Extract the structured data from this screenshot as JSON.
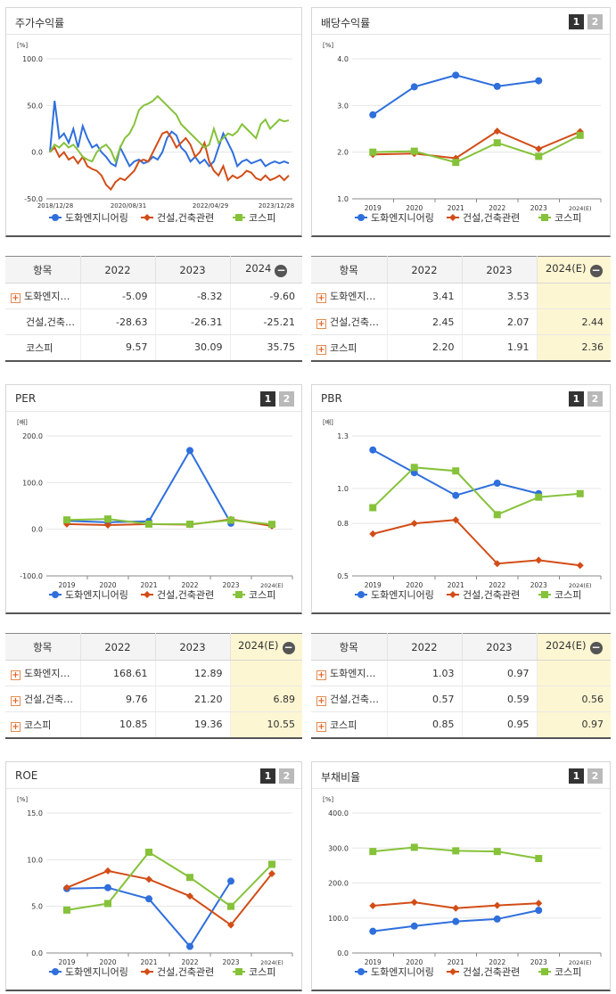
{
  "legend": {
    "s1": "도화엔지니어링",
    "s2": "건설,건축관련",
    "s3": "코스피"
  },
  "colors": {
    "s1": "#2f6fdc",
    "s2": "#d24d17",
    "s3": "#86c23a"
  },
  "pager": {
    "p1": "1",
    "p2": "2"
  },
  "panels": {
    "stock": {
      "title": "주가수익률"
    },
    "div": {
      "title": "배당수익률"
    },
    "per": {
      "title": "PER"
    },
    "pbr": {
      "title": "PBR"
    },
    "roe": {
      "title": "ROE"
    },
    "debt": {
      "title": "부채비율"
    }
  },
  "tables": {
    "stock": {
      "headers": [
        "항목",
        "2022",
        "2023",
        "2024"
      ],
      "rows": [
        {
          "name": "도화엔지…",
          "expand": true,
          "v": [
            "-5.09",
            "-8.32",
            "-9.60"
          ]
        },
        {
          "name": "건설,건축…",
          "expand": false,
          "v": [
            "-28.63",
            "-26.31",
            "-25.21"
          ]
        },
        {
          "name": "코스피",
          "expand": false,
          "v": [
            "9.57",
            "30.09",
            "35.75"
          ]
        }
      ]
    },
    "div": {
      "headers": [
        "항목",
        "2022",
        "2023",
        "2024(E)"
      ],
      "rows": [
        {
          "name": "도화엔지…",
          "expand": true,
          "v": [
            "3.41",
            "3.53",
            ""
          ]
        },
        {
          "name": "건설,건축…",
          "expand": true,
          "v": [
            "2.45",
            "2.07",
            "2.44"
          ]
        },
        {
          "name": "코스피",
          "expand": true,
          "v": [
            "2.20",
            "1.91",
            "2.36"
          ]
        }
      ]
    },
    "per": {
      "headers": [
        "항목",
        "2022",
        "2023",
        "2024(E)"
      ],
      "rows": [
        {
          "name": "도화엔지…",
          "expand": true,
          "v": [
            "168.61",
            "12.89",
            ""
          ]
        },
        {
          "name": "건설,건축…",
          "expand": true,
          "v": [
            "9.76",
            "21.20",
            "6.89"
          ]
        },
        {
          "name": "코스피",
          "expand": true,
          "v": [
            "10.85",
            "19.36",
            "10.55"
          ]
        }
      ]
    },
    "pbr": {
      "headers": [
        "항목",
        "2022",
        "2023",
        "2024(E)"
      ],
      "rows": [
        {
          "name": "도화엔지…",
          "expand": true,
          "v": [
            "1.03",
            "0.97",
            ""
          ]
        },
        {
          "name": "건설,건축…",
          "expand": true,
          "v": [
            "0.57",
            "0.59",
            "0.56"
          ]
        },
        {
          "name": "코스피",
          "expand": true,
          "v": [
            "0.85",
            "0.95",
            "0.97"
          ]
        }
      ]
    }
  },
  "chart_data": [
    {
      "id": "stock",
      "type": "line",
      "title": "주가수익률",
      "ylabel": "[%]",
      "ylim": [
        -50,
        100
      ],
      "yticks": [
        "100.0",
        "50.0",
        "0.0",
        "-50.0"
      ],
      "ytick_values": [
        100,
        50,
        0,
        -50
      ],
      "xticks": [
        "2018/12/28",
        "2020/08/31",
        "2022/04/29",
        "2023/12/28"
      ],
      "series": [
        {
          "name": "도화엔지니어링",
          "values": [
            0,
            55,
            15,
            20,
            10,
            25,
            5,
            28,
            15,
            5,
            8,
            0,
            -5,
            -12,
            -15,
            5,
            -5,
            -15,
            -10,
            -8,
            -12,
            -10,
            -5,
            -8,
            0,
            15,
            22,
            18,
            5,
            0,
            -10,
            -5,
            -12,
            -8,
            -15,
            -10,
            5,
            20,
            10,
            0,
            -15,
            -10,
            -8,
            -12,
            -10,
            -8,
            -15,
            -12,
            -10,
            -12,
            -10,
            -12
          ]
        },
        {
          "name": "건설,건축관련",
          "values": [
            0,
            5,
            -5,
            0,
            -8,
            -5,
            -12,
            -5,
            -15,
            -18,
            -20,
            -25,
            -35,
            -40,
            -32,
            -28,
            -30,
            -25,
            -20,
            -10,
            -8,
            -10,
            0,
            10,
            20,
            22,
            15,
            5,
            10,
            15,
            8,
            -5,
            0,
            10,
            -10,
            -20,
            -25,
            -15,
            -30,
            -25,
            -28,
            -25,
            -20,
            -22,
            -28,
            -30,
            -25,
            -30,
            -28,
            -25,
            -30,
            -25
          ]
        },
        {
          "name": "코스피",
          "values": [
            0,
            8,
            5,
            10,
            5,
            8,
            2,
            -5,
            -8,
            -10,
            0,
            5,
            8,
            2,
            -10,
            5,
            15,
            20,
            30,
            45,
            50,
            52,
            55,
            60,
            55,
            50,
            45,
            40,
            30,
            25,
            20,
            15,
            10,
            5,
            8,
            25,
            10,
            15,
            20,
            18,
            22,
            30,
            25,
            20,
            15,
            30,
            35,
            25,
            30,
            35,
            33,
            34
          ]
        }
      ]
    },
    {
      "id": "div",
      "type": "line",
      "title": "배당수익률",
      "ylabel": "[%]",
      "ylim": [
        1,
        4
      ],
      "yticks": [
        "4.0",
        "3.0",
        "2.0",
        "1.0"
      ],
      "ytick_values": [
        4,
        3,
        2,
        1
      ],
      "categories": [
        "2019",
        "2020",
        "2021",
        "2022",
        "2023",
        "2024(E)"
      ],
      "series": [
        {
          "name": "도화엔지니어링",
          "values": [
            2.8,
            3.4,
            3.65,
            3.41,
            3.53,
            null
          ]
        },
        {
          "name": "건설,건축관련",
          "values": [
            1.95,
            1.97,
            1.87,
            2.45,
            2.07,
            2.44
          ]
        },
        {
          "name": "코스피",
          "values": [
            2.0,
            2.02,
            1.78,
            2.2,
            1.91,
            2.36
          ]
        }
      ]
    },
    {
      "id": "per",
      "type": "line",
      "title": "PER",
      "ylabel": "[배]",
      "ylim": [
        -100,
        200
      ],
      "yticks": [
        "200.0",
        "100.0",
        "0.0",
        "-100.0"
      ],
      "ytick_values": [
        200,
        100,
        0,
        -100
      ],
      "categories": [
        "2019",
        "2020",
        "2021",
        "2022",
        "2023",
        "2024(E)"
      ],
      "series": [
        {
          "name": "도화엔지니어링",
          "values": [
            18,
            15,
            17,
            168.61,
            12.89,
            null
          ]
        },
        {
          "name": "건설,건축관련",
          "values": [
            11,
            9,
            11,
            9.76,
            21.2,
            6.89
          ]
        },
        {
          "name": "코스피",
          "values": [
            20,
            22,
            11,
            10.85,
            19.36,
            10.55
          ]
        }
      ]
    },
    {
      "id": "pbr",
      "type": "line",
      "title": "PBR",
      "ylabel": "[배]",
      "ylim": [
        0.5,
        1.3
      ],
      "yticks": [
        "1.3",
        "1.0",
        "0.8",
        "0.5"
      ],
      "ytick_values": [
        1.3,
        1.0,
        0.8,
        0.5
      ],
      "categories": [
        "2019",
        "2020",
        "2021",
        "2022",
        "2023",
        "2024(E)"
      ],
      "series": [
        {
          "name": "도화엔지니어링",
          "values": [
            1.22,
            1.09,
            0.96,
            1.03,
            0.97,
            null
          ]
        },
        {
          "name": "건설,건축관련",
          "values": [
            0.74,
            0.8,
            0.82,
            0.57,
            0.59,
            0.56
          ]
        },
        {
          "name": "코스피",
          "values": [
            0.89,
            1.12,
            1.1,
            0.85,
            0.95,
            0.97
          ]
        }
      ]
    },
    {
      "id": "roe",
      "type": "line",
      "title": "ROE",
      "ylabel": "[%]",
      "ylim": [
        0,
        15
      ],
      "yticks": [
        "15.0",
        "10.0",
        "5.0",
        "0.0"
      ],
      "ytick_values": [
        15,
        10,
        5,
        0
      ],
      "categories": [
        "2019",
        "2020",
        "2021",
        "2022",
        "2023",
        "2024(E)"
      ],
      "series": [
        {
          "name": "도화엔지니어링",
          "values": [
            6.9,
            7.0,
            5.8,
            0.7,
            7.7,
            null
          ]
        },
        {
          "name": "건설,건축관련",
          "values": [
            7.0,
            8.8,
            7.9,
            6.1,
            3.0,
            8.5
          ]
        },
        {
          "name": "코스피",
          "values": [
            4.6,
            5.3,
            10.8,
            8.1,
            5.0,
            9.5
          ]
        }
      ]
    },
    {
      "id": "debt",
      "type": "line",
      "title": "부채비율",
      "ylabel": "[%]",
      "ylim": [
        0,
        400
      ],
      "yticks": [
        "400.0",
        "300.0",
        "200.0",
        "100.0",
        "0.0"
      ],
      "ytick_values": [
        400,
        300,
        200,
        100,
        0
      ],
      "categories": [
        "2019",
        "2020",
        "2021",
        "2022",
        "2023",
        "2024(E)"
      ],
      "series": [
        {
          "name": "도화엔지니어링",
          "values": [
            62,
            77,
            90,
            97,
            122,
            null
          ]
        },
        {
          "name": "건설,건축관련",
          "values": [
            135,
            145,
            128,
            136,
            142,
            null
          ]
        },
        {
          "name": "코스피",
          "values": [
            290,
            302,
            292,
            290,
            270,
            null
          ]
        }
      ]
    }
  ]
}
